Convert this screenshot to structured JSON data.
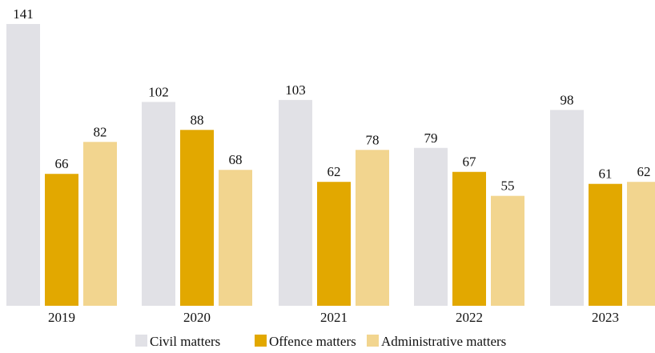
{
  "chart_data": {
    "type": "bar",
    "categories": [
      "2019",
      "2020",
      "2021",
      "2022",
      "2023"
    ],
    "series": [
      {
        "name": "Civil matters",
        "color": "#e1e1e6",
        "values": [
          141,
          102,
          103,
          79,
          98
        ]
      },
      {
        "name": "Offence matters",
        "color": "#e2a800",
        "values": [
          66,
          88,
          62,
          67,
          61
        ]
      },
      {
        "name": "Administrative matters",
        "color": "#f2d58f",
        "values": [
          82,
          68,
          78,
          55,
          62
        ]
      }
    ],
    "ylim": [
      0,
      141
    ],
    "grid": false,
    "legend": "bottom"
  }
}
